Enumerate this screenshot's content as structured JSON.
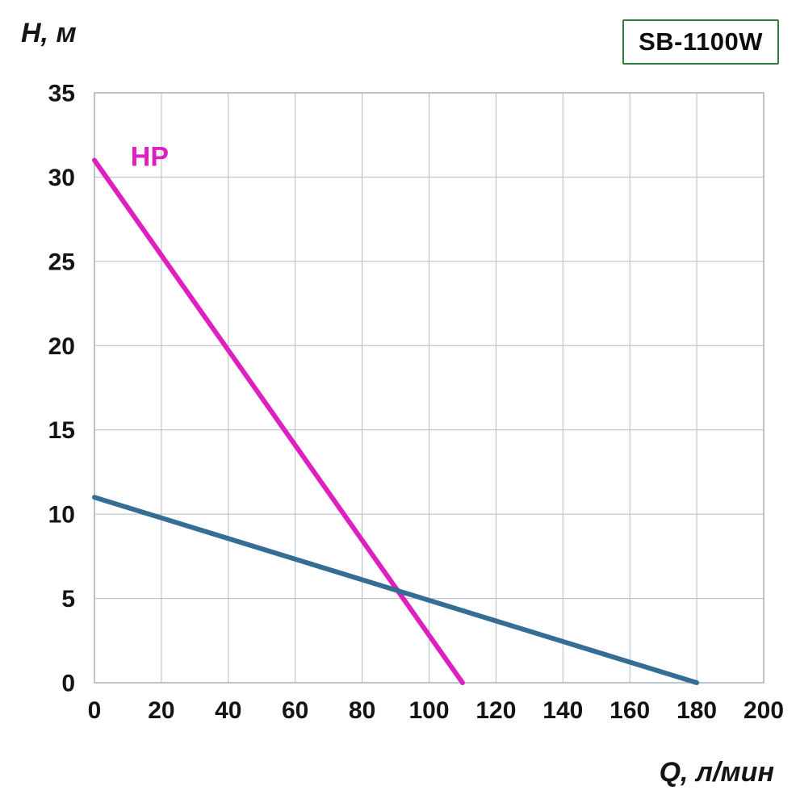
{
  "colors": {
    "grid": "#b3bcc3",
    "plot_border": "#a7b1b9",
    "text": "#141414",
    "badge_border": "#2e7d3a",
    "hp_line": "#dd20be",
    "pump_line": "#356e94"
  },
  "chart_data": {
    "type": "line",
    "title": "",
    "badge": "SB-1100W",
    "ylabel": "H, м",
    "xlabel": "Q, л/мин",
    "xlim": [
      0,
      200
    ],
    "ylim": [
      0,
      35
    ],
    "x_ticks": [
      0,
      20,
      40,
      60,
      80,
      100,
      120,
      140,
      160,
      180,
      200
    ],
    "y_ticks": [
      0,
      5,
      10,
      15,
      20,
      25,
      30,
      35
    ],
    "grid": true,
    "legend_position": "none",
    "series": [
      {
        "name": "hp-curve",
        "label": "HP",
        "color": "#dd20be",
        "points": [
          [
            0,
            31
          ],
          [
            110,
            0
          ]
        ]
      },
      {
        "name": "pump-curve",
        "label": "",
        "color": "#356e94",
        "points": [
          [
            0,
            11
          ],
          [
            180,
            0
          ]
        ]
      }
    ],
    "annotations": [
      {
        "text": "HP",
        "x": 10.8,
        "y": 31.2,
        "color": "#dd20be"
      }
    ]
  }
}
